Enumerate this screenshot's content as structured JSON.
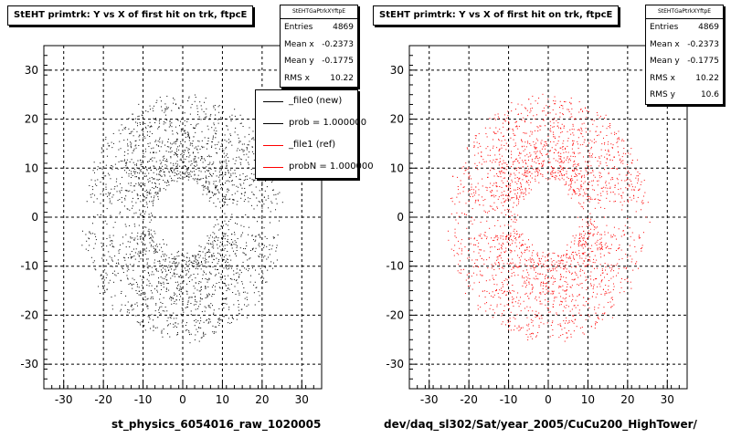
{
  "chart_data": [
    {
      "type": "scatter",
      "title": "StEHT primtrk: Y vs X of first hit on trk, ftpcE",
      "xlabel": "st_physics_6054016_raw_1020005",
      "ylabel": "",
      "xlim": [
        -35,
        35
      ],
      "ylim": [
        -35,
        35
      ],
      "xticks": [
        -30,
        -20,
        -10,
        0,
        10,
        20,
        30
      ],
      "yticks": [
        -30,
        -20,
        -10,
        0,
        10,
        20,
        30
      ],
      "grid": true,
      "series": [
        {
          "name": "_file0 (new)",
          "color": "#000000"
        }
      ],
      "stats": {
        "header": "StEHTGaPtrkXYftpE",
        "rows": [
          {
            "label": "Entries",
            "value": "4869"
          },
          {
            "label": "Mean x",
            "value": "-0.2373"
          },
          {
            "label": "Mean y",
            "value": "-0.1775"
          },
          {
            "label": "RMS x",
            "value": "10.22"
          }
        ]
      },
      "legend": {
        "placement": "top-right",
        "entries": [
          {
            "label": "_file0 (new)",
            "color": "#000000"
          },
          {
            "label": "prob = 1.000000",
            "color": "#000000"
          },
          {
            "label": "_file1 (ref)",
            "color": "#ff0000"
          },
          {
            "label": "probN = 1.000000",
            "color": "#ff0000"
          }
        ]
      }
    },
    {
      "type": "scatter",
      "title": "StEHT primtrk: Y vs X of first hit on trk, ftpcE",
      "xlabel": "dev/daq_sl302/Sat/year_2005/CuCu200_HighTower/",
      "ylabel": "",
      "xlim": [
        -35,
        35
      ],
      "ylim": [
        -35,
        35
      ],
      "xticks": [
        -30,
        -20,
        -10,
        0,
        10,
        20,
        30
      ],
      "yticks": [
        -30,
        -20,
        -10,
        0,
        10,
        20,
        30
      ],
      "grid": true,
      "series": [
        {
          "name": "_file1 (ref)",
          "color": "#ff0000"
        }
      ],
      "stats": {
        "header": "StEHTGaPtrkXYftpE",
        "rows": [
          {
            "label": "Entries",
            "value": "4869"
          },
          {
            "label": "Mean x",
            "value": "-0.2373"
          },
          {
            "label": "Mean y",
            "value": "-0.1775"
          },
          {
            "label": "RMS x",
            "value": "10.22"
          },
          {
            "label": "RMS y",
            "value": "10.6"
          }
        ]
      }
    }
  ]
}
